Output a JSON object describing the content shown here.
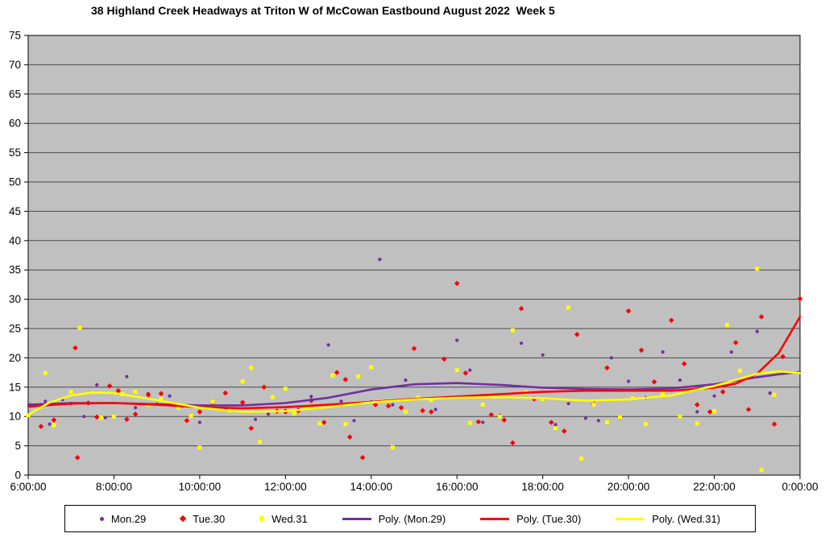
{
  "chart_data": {
    "type": "scatter",
    "title": "38 Highland Creek Headways at Triton W of McCowan Eastbound August 2022  Week 5",
    "x_range": [
      6,
      24
    ],
    "ylim": [
      0,
      75
    ],
    "y_step": 5,
    "grid": "horizontal",
    "legend_position": "bottom",
    "colors": {
      "plot_bg": "#c0c0c0",
      "grid": "#4a4a4a",
      "axis": "#000000",
      "page_bg": "#ffffff",
      "mon_purple": "#7030a0",
      "tue_red": "#ff0000",
      "wed_yellow": "#ffff00"
    },
    "x_ticks": [
      {
        "hour": 6,
        "label": "6:00:00"
      },
      {
        "hour": 8,
        "label": "8:00:00"
      },
      {
        "hour": 10,
        "label": "10:00:00"
      },
      {
        "hour": 12,
        "label": "12:00:00"
      },
      {
        "hour": 14,
        "label": "14:00:00"
      },
      {
        "hour": 16,
        "label": "16:00:00"
      },
      {
        "hour": 18,
        "label": "18:00:00"
      },
      {
        "hour": 20,
        "label": "20:00:00"
      },
      {
        "hour": 22,
        "label": "22:00:00"
      },
      {
        "hour": 24,
        "label": "0:00:00"
      }
    ],
    "series": [
      {
        "name": "Mon.29",
        "type": "scatter",
        "marker": "circle",
        "color": "#7030a0",
        "points": [
          [
            6.1,
            11.9
          ],
          [
            6.4,
            12.6
          ],
          [
            6.5,
            8.7
          ],
          [
            6.8,
            12.9
          ],
          [
            7.0,
            12.2
          ],
          [
            7.3,
            10.0
          ],
          [
            7.6,
            15.4
          ],
          [
            7.8,
            9.8
          ],
          [
            8.0,
            10.1
          ],
          [
            8.3,
            16.8
          ],
          [
            8.5,
            11.5
          ],
          [
            8.8,
            13.9
          ],
          [
            9.0,
            12.1
          ],
          [
            9.3,
            13.5
          ],
          [
            9.6,
            11.8
          ],
          [
            10.0,
            9.0
          ],
          [
            10.3,
            12.4
          ],
          [
            10.6,
            11.2
          ],
          [
            11.0,
            12.0
          ],
          [
            11.3,
            9.5
          ],
          [
            11.6,
            10.4
          ],
          [
            12.0,
            11.0
          ],
          [
            12.3,
            11.2
          ],
          [
            12.6,
            13.4
          ],
          [
            13.0,
            22.2
          ],
          [
            13.3,
            12.6
          ],
          [
            13.6,
            9.3
          ],
          [
            14.0,
            12.5
          ],
          [
            14.2,
            36.8
          ],
          [
            14.5,
            12.0
          ],
          [
            14.8,
            16.2
          ],
          [
            15.2,
            11.0
          ],
          [
            15.5,
            11.2
          ],
          [
            16.0,
            23.0
          ],
          [
            16.3,
            17.9
          ],
          [
            16.6,
            9.0
          ],
          [
            17.0,
            10.2
          ],
          [
            17.5,
            22.5
          ],
          [
            18.0,
            20.5
          ],
          [
            18.3,
            8.6
          ],
          [
            18.6,
            12.2
          ],
          [
            19.0,
            9.7
          ],
          [
            19.3,
            9.3
          ],
          [
            19.6,
            20.0
          ],
          [
            20.0,
            16.0
          ],
          [
            20.4,
            13.2
          ],
          [
            20.8,
            21.0
          ],
          [
            21.2,
            16.2
          ],
          [
            21.6,
            10.8
          ],
          [
            22.0,
            13.5
          ],
          [
            22.4,
            21.0
          ],
          [
            23.0,
            24.5
          ],
          [
            23.3,
            14.0
          ]
        ]
      },
      {
        "name": "Tue.30",
        "type": "scatter",
        "marker": "diamond",
        "color": "#ff0000",
        "points": [
          [
            6.05,
            11.9
          ],
          [
            6.3,
            8.3
          ],
          [
            6.6,
            9.4
          ],
          [
            7.1,
            21.7
          ],
          [
            7.15,
            3.0
          ],
          [
            7.4,
            12.3
          ],
          [
            7.6,
            9.9
          ],
          [
            7.9,
            15.2
          ],
          [
            8.1,
            14.4
          ],
          [
            8.3,
            9.5
          ],
          [
            8.5,
            10.4
          ],
          [
            8.8,
            13.7
          ],
          [
            9.1,
            13.9
          ],
          [
            9.4,
            12.0
          ],
          [
            9.7,
            9.3
          ],
          [
            10.0,
            10.8
          ],
          [
            10.3,
            12.3
          ],
          [
            10.6,
            14.0
          ],
          [
            11.0,
            12.4
          ],
          [
            11.2,
            8.0
          ],
          [
            11.5,
            15.0
          ],
          [
            11.8,
            10.9
          ],
          [
            12.0,
            10.8
          ],
          [
            12.3,
            11.0
          ],
          [
            12.6,
            12.7
          ],
          [
            12.9,
            9.0
          ],
          [
            13.2,
            17.5
          ],
          [
            13.4,
            16.3
          ],
          [
            13.5,
            6.5
          ],
          [
            13.8,
            3.0
          ],
          [
            14.1,
            12.0
          ],
          [
            14.4,
            11.8
          ],
          [
            14.7,
            11.5
          ],
          [
            15.0,
            21.6
          ],
          [
            15.2,
            11.0
          ],
          [
            15.4,
            10.8
          ],
          [
            15.7,
            19.8
          ],
          [
            16.0,
            32.7
          ],
          [
            16.2,
            17.4
          ],
          [
            16.5,
            9.1
          ],
          [
            16.8,
            10.3
          ],
          [
            17.1,
            9.4
          ],
          [
            17.3,
            5.5
          ],
          [
            17.5,
            28.4
          ],
          [
            17.8,
            13.0
          ],
          [
            18.0,
            12.9
          ],
          [
            18.2,
            9.0
          ],
          [
            18.5,
            7.5
          ],
          [
            18.8,
            24.0
          ],
          [
            19.2,
            12.1
          ],
          [
            19.5,
            18.3
          ],
          [
            19.8,
            9.9
          ],
          [
            20.0,
            28.0
          ],
          [
            20.3,
            21.3
          ],
          [
            20.6,
            15.9
          ],
          [
            21.0,
            26.4
          ],
          [
            21.3,
            19.0
          ],
          [
            21.6,
            12.0
          ],
          [
            21.9,
            10.8
          ],
          [
            22.2,
            14.2
          ],
          [
            22.5,
            22.6
          ],
          [
            22.8,
            11.2
          ],
          [
            23.1,
            27.0
          ],
          [
            23.4,
            8.7
          ],
          [
            23.6,
            20.2
          ],
          [
            24.0,
            30.1
          ]
        ]
      },
      {
        "name": "Wed.31",
        "type": "scatter",
        "marker": "square",
        "color": "#ffff00",
        "points": [
          [
            6.0,
            10.2
          ],
          [
            6.4,
            17.4
          ],
          [
            6.6,
            8.5
          ],
          [
            7.0,
            14.2
          ],
          [
            7.2,
            25.1
          ],
          [
            7.7,
            9.8
          ],
          [
            8.0,
            10.0
          ],
          [
            8.2,
            13.8
          ],
          [
            8.5,
            14.2
          ],
          [
            8.8,
            12.0
          ],
          [
            9.1,
            13.0
          ],
          [
            9.5,
            11.5
          ],
          [
            9.8,
            10.1
          ],
          [
            10.0,
            4.7
          ],
          [
            10.3,
            12.5
          ],
          [
            10.7,
            11.0
          ],
          [
            11.0,
            16.0
          ],
          [
            11.2,
            18.3
          ],
          [
            11.4,
            5.7
          ],
          [
            11.7,
            13.3
          ],
          [
            12.0,
            14.7
          ],
          [
            12.2,
            10.5
          ],
          [
            12.5,
            11.7
          ],
          [
            12.8,
            8.8
          ],
          [
            13.1,
            17.0
          ],
          [
            13.4,
            8.7
          ],
          [
            13.7,
            16.8
          ],
          [
            14.0,
            18.4
          ],
          [
            14.5,
            4.7
          ],
          [
            14.8,
            10.8
          ],
          [
            15.1,
            13.2
          ],
          [
            15.4,
            12.8
          ],
          [
            16.0,
            17.9
          ],
          [
            16.3,
            8.9
          ],
          [
            16.6,
            12.0
          ],
          [
            17.0,
            10.0
          ],
          [
            17.3,
            24.7
          ],
          [
            17.6,
            14.1
          ],
          [
            18.0,
            12.9
          ],
          [
            18.3,
            8.0
          ],
          [
            18.6,
            28.6
          ],
          [
            18.9,
            2.8
          ],
          [
            19.2,
            12.0
          ],
          [
            19.5,
            9.0
          ],
          [
            19.8,
            9.9
          ],
          [
            20.1,
            13.1
          ],
          [
            20.4,
            8.7
          ],
          [
            20.8,
            13.9
          ],
          [
            21.2,
            10.0
          ],
          [
            21.6,
            8.8
          ],
          [
            22.0,
            10.9
          ],
          [
            22.3,
            25.6
          ],
          [
            22.6,
            17.8
          ],
          [
            23.0,
            35.2
          ],
          [
            23.1,
            0.9
          ],
          [
            23.4,
            13.7
          ]
        ]
      },
      {
        "name": "Poly. (Mon.29)",
        "type": "line",
        "color": "#7030a0",
        "points": [
          [
            6,
            12.0
          ],
          [
            7,
            12.3
          ],
          [
            8,
            12.3
          ],
          [
            9,
            12.1
          ],
          [
            10,
            11.9
          ],
          [
            11,
            11.9
          ],
          [
            12,
            12.3
          ],
          [
            13,
            13.2
          ],
          [
            14,
            14.6
          ],
          [
            15,
            15.5
          ],
          [
            16,
            15.7
          ],
          [
            17,
            15.4
          ],
          [
            18,
            14.9
          ],
          [
            19,
            14.7
          ],
          [
            20,
            14.6
          ],
          [
            21,
            14.8
          ],
          [
            22,
            15.5
          ],
          [
            23,
            16.7
          ],
          [
            23.5,
            17.2
          ],
          [
            24,
            17.6
          ]
        ]
      },
      {
        "name": "Poly. (Tue.30)",
        "type": "line",
        "color": "#ff0000",
        "points": [
          [
            6,
            11.7
          ],
          [
            7,
            12.2
          ],
          [
            8,
            12.3
          ],
          [
            9,
            12.0
          ],
          [
            10,
            11.6
          ],
          [
            11,
            11.4
          ],
          [
            12,
            11.6
          ],
          [
            13,
            12.0
          ],
          [
            14,
            12.5
          ],
          [
            15,
            13.0
          ],
          [
            16,
            13.4
          ],
          [
            17,
            13.8
          ],
          [
            18,
            14.2
          ],
          [
            19,
            14.4
          ],
          [
            20,
            14.4
          ],
          [
            21,
            14.4
          ],
          [
            22,
            14.9
          ],
          [
            22.5,
            15.6
          ],
          [
            23,
            17.3
          ],
          [
            23.5,
            20.8
          ],
          [
            24,
            27.0
          ]
        ]
      },
      {
        "name": "Poly. (Wed.31)",
        "type": "line",
        "color": "#ffff00",
        "points": [
          [
            6,
            10.3
          ],
          [
            6.5,
            12.4
          ],
          [
            7,
            13.6
          ],
          [
            7.5,
            14.1
          ],
          [
            8,
            14.0
          ],
          [
            9,
            12.8
          ],
          [
            10,
            11.5
          ],
          [
            11,
            10.8
          ],
          [
            12,
            10.9
          ],
          [
            13,
            11.6
          ],
          [
            14,
            12.4
          ],
          [
            15,
            12.9
          ],
          [
            16,
            13.2
          ],
          [
            17,
            13.3
          ],
          [
            18,
            13.1
          ],
          [
            19,
            12.7
          ],
          [
            20,
            12.9
          ],
          [
            21,
            13.6
          ],
          [
            22,
            15.2
          ],
          [
            23,
            17.3
          ],
          [
            23.5,
            17.7
          ],
          [
            24,
            17.4
          ]
        ]
      }
    ]
  }
}
